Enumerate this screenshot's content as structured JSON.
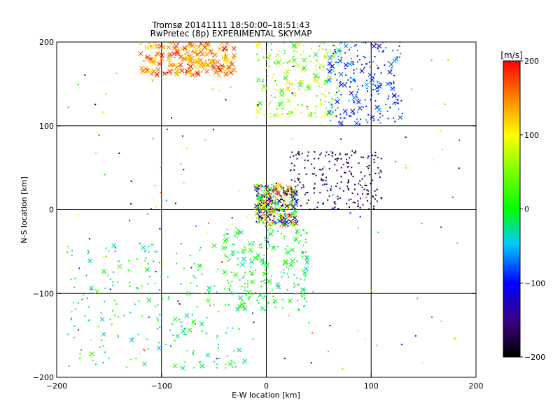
{
  "chart_data": {
    "type": "scatter",
    "title": "Tromsø 20141111 18:50:00–18:51:43",
    "subtitle": "RwPretec (8p) EXPERIMENTAL SKYMAP",
    "xlabel": "E-W location [km]",
    "ylabel": "N-S location [km]",
    "xlim": [
      -200,
      200
    ],
    "ylim": [
      -200,
      200
    ],
    "xticks": [
      -200,
      -100,
      0,
      100,
      200
    ],
    "yticks": [
      -200,
      -100,
      0,
      100,
      200
    ],
    "grid": [
      -100,
      0,
      100
    ],
    "colorbar": {
      "unit_label": "[m/s]",
      "range": [
        -200,
        200
      ],
      "ticks": [
        200,
        100,
        0,
        -100,
        -200
      ]
    },
    "marker_types": [
      "dot",
      "cross"
    ],
    "clusters": [
      {
        "region": "northwest-arc",
        "x": [
          -120,
          -30
        ],
        "y": [
          160,
          200
        ],
        "velocity": [
          100,
          200
        ],
        "markers": "cross"
      },
      {
        "region": "north-center",
        "x": [
          -10,
          70
        ],
        "y": [
          110,
          200
        ],
        "velocity": [
          -20,
          120
        ],
        "markers": "mixed"
      },
      {
        "region": "northeast",
        "x": [
          60,
          130
        ],
        "y": [
          100,
          200
        ],
        "velocity": [
          -120,
          -50
        ],
        "markers": "mixed"
      },
      {
        "region": "center-core",
        "x": [
          -10,
          30
        ],
        "y": [
          -20,
          30
        ],
        "velocity": [
          -200,
          200
        ],
        "markers": "mixed"
      },
      {
        "region": "east-of-center",
        "x": [
          20,
          110
        ],
        "y": [
          0,
          70
        ],
        "velocity": [
          -200,
          -140
        ],
        "markers": "dots"
      },
      {
        "region": "southwest-tail",
        "x": [
          -190,
          -20
        ],
        "y": [
          -190,
          -40
        ],
        "velocity": [
          -60,
          30
        ],
        "markers": "mixed"
      },
      {
        "region": "south-center",
        "x": [
          -40,
          40
        ],
        "y": [
          -120,
          -20
        ],
        "velocity": [
          -40,
          30
        ],
        "markers": "mixed"
      }
    ]
  }
}
